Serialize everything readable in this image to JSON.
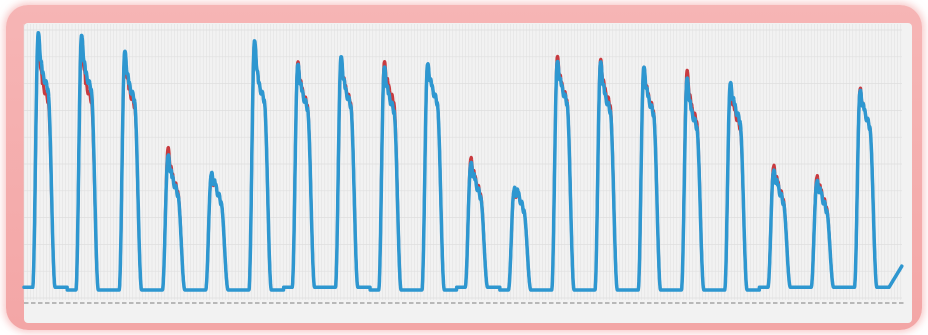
{
  "chart_data": {
    "type": "line",
    "title": "",
    "xlabel": "",
    "ylabel": "",
    "xlim": [
      0,
      20.3
    ],
    "ylim": [
      0,
      100
    ],
    "grid": true,
    "legend": "none",
    "colors": {
      "series_a": "#c83a3f",
      "series_b": "#2e97d0",
      "frame": "#f3a6a6",
      "background": "#f2f2f2",
      "grid": "#dedede"
    },
    "cycles": [
      {
        "peak_a": 97,
        "peak_b": 99,
        "shoulder_a": 80,
        "shoulder_b": 84,
        "low": 4
      },
      {
        "peak_a": 97,
        "peak_b": 98,
        "shoulder_a": 80,
        "shoulder_b": 84,
        "low": 3
      },
      {
        "peak_a": 91,
        "peak_b": 92,
        "shoulder_a": 78,
        "shoulder_b": 80,
        "low": 3
      },
      {
        "peak_a": 56,
        "peak_b": 53,
        "shoulder_a": 46,
        "shoulder_b": 45,
        "low": 3
      },
      {
        "peak_a": 45,
        "peak_b": 46,
        "shoulder_a": 42,
        "shoulder_b": 42,
        "low": 3
      },
      {
        "peak_a": 96,
        "peak_b": 96,
        "shoulder_a": 80,
        "shoulder_b": 80,
        "low": 3
      },
      {
        "peak_a": 88,
        "peak_b": 87,
        "shoulder_a": 78,
        "shoulder_b": 77,
        "low": 4
      },
      {
        "peak_a": 89,
        "peak_b": 90,
        "shoulder_a": 79,
        "shoulder_b": 78,
        "low": 4
      },
      {
        "peak_a": 88,
        "peak_b": 86,
        "shoulder_a": 79,
        "shoulder_b": 76,
        "low": 3
      },
      {
        "peak_a": 87,
        "peak_b": 87,
        "shoulder_a": 79,
        "shoulder_b": 79,
        "low": 3
      },
      {
        "peak_a": 52,
        "peak_b": 50,
        "shoulder_a": 45,
        "shoulder_b": 44,
        "low": 4
      },
      {
        "peak_a": 39,
        "peak_b": 40,
        "shoulder_a": 39,
        "shoulder_b": 39,
        "low": 3
      },
      {
        "peak_a": 90,
        "peak_b": 88,
        "shoulder_a": 80,
        "shoulder_b": 79,
        "low": 3
      },
      {
        "peak_a": 89,
        "peak_b": 88,
        "shoulder_a": 78,
        "shoulder_b": 76,
        "low": 3
      },
      {
        "peak_a": 86,
        "peak_b": 86,
        "shoulder_a": 76,
        "shoulder_b": 75,
        "low": 3
      },
      {
        "peak_a": 85,
        "peak_b": 82,
        "shoulder_a": 72,
        "shoulder_b": 70,
        "low": 3
      },
      {
        "peak_a": 78,
        "peak_b": 80,
        "shoulder_a": 70,
        "shoulder_b": 72,
        "low": 3
      },
      {
        "peak_a": 49,
        "peak_b": 47,
        "shoulder_a": 43,
        "shoulder_b": 42,
        "low": 4
      },
      {
        "peak_a": 45,
        "peak_b": 43,
        "shoulder_a": 40,
        "shoulder_b": 39,
        "low": 4
      },
      {
        "peak_a": 78,
        "peak_b": 77,
        "shoulder_a": 70,
        "shoulder_b": 70,
        "low": 4
      }
    ]
  }
}
